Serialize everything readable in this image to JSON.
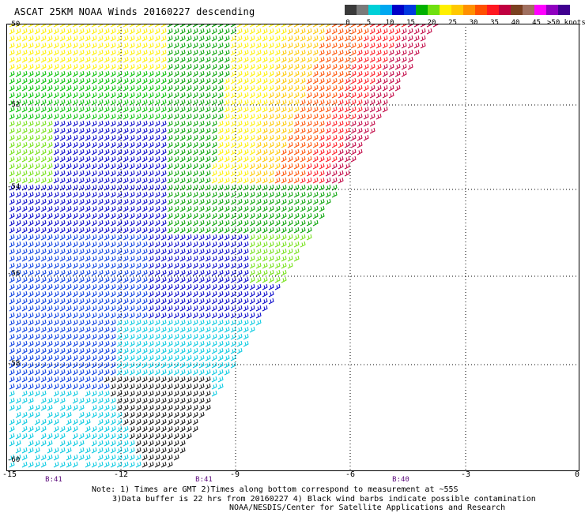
{
  "title": "ASCAT 25KM NOAA Winds 20160227 descending",
  "legend": {
    "colors": [
      "#3a3a3a",
      "#7a7a7a",
      "#00d0d8",
      "#00a8f0",
      "#0000c8",
      "#0038e0",
      "#00b000",
      "#70e010",
      "#fff000",
      "#ffc800",
      "#ff9000",
      "#ff5000",
      "#ff1820",
      "#c00040",
      "#7a4020",
      "#a07060",
      "#ff00ff",
      "#9000c0",
      "#400090"
    ],
    "ticks": [
      "0",
      "5",
      "10",
      "15",
      "20",
      "25",
      "30",
      "35",
      "40",
      "45"
    ],
    "units": ">50 knots"
  },
  "axes": {
    "lat_labels": [
      "-50",
      "-52",
      "-54",
      "-56",
      "-58",
      "-60"
    ],
    "lon_labels": [
      "-15",
      "-12",
      "-9",
      "-6",
      "-3",
      "0"
    ]
  },
  "revs": [
    "B:41",
    "B:41",
    "B:40"
  ],
  "notes": {
    "line1": "Note: 1) Times are GMT 2)Times along bottom correspond to measurement at ~55S",
    "line2": "3)Data buffer is 22 hrs from 20160227 4) Black wind barbs indicate possible contamination",
    "line3": "NOAA/NESDIS/Center for Satellite Applications and Research"
  }
}
